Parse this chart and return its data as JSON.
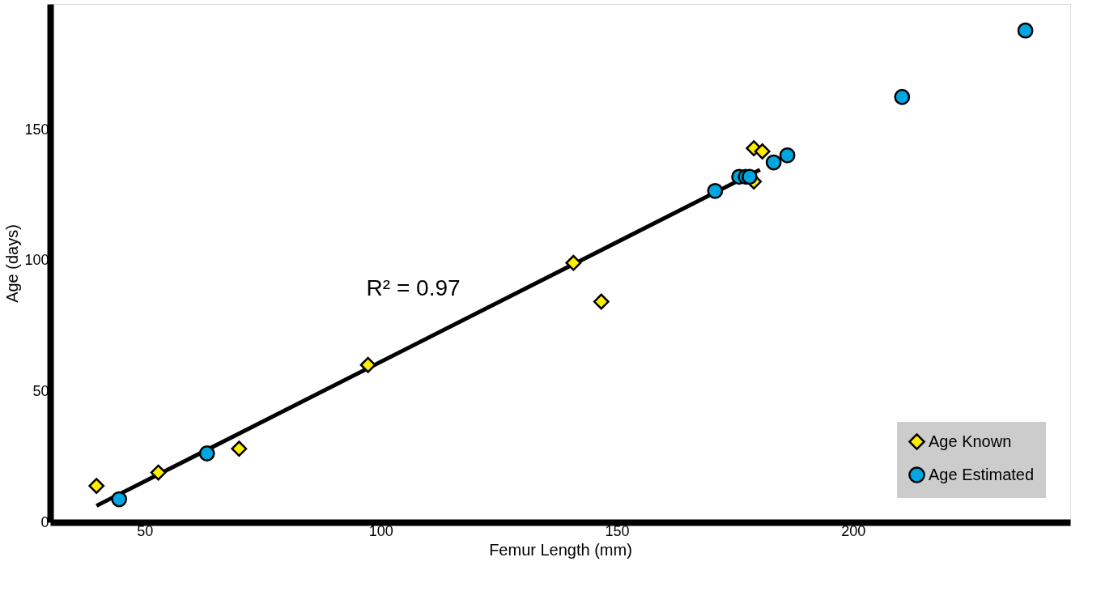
{
  "chart_data": {
    "type": "scatter",
    "xlabel": "Femur Length (mm)",
    "ylabel": "Age (days)",
    "xlim": [
      30,
      246
    ],
    "ylim": [
      0,
      198
    ],
    "xticks": [
      50,
      100,
      150,
      200
    ],
    "yticks": [
      0,
      50,
      100,
      150
    ],
    "grid": false,
    "legend": "bottom right",
    "annotations": [
      "R² = 0.97"
    ],
    "series": [
      {
        "name": "Age Known",
        "color": "#ffed00",
        "marker": "diamond",
        "x": [
          39.8,
          52.9,
          70.0,
          97.3,
          140.8,
          146.7,
          179.0,
          180.8,
          179.0
        ],
        "values": [
          13.9,
          19.0,
          28.1,
          60.1,
          99.1,
          84.3,
          142.9,
          141.7,
          130.2
        ]
      },
      {
        "type": "line",
        "color": "#000000",
        "x": [
          39.8,
          180.3
        ],
        "values": [
          6.3,
          134.7
        ]
      },
      {
        "name": "Age Estimated",
        "color": "#00a6e0",
        "marker": "circle",
        "x": [
          44.6,
          63.2,
          170.8,
          175.9,
          177.3,
          178.1,
          183.2,
          186.1,
          210.4,
          236.5
        ],
        "values": [
          8.8,
          26.3,
          126.6,
          132.0,
          132.0,
          132.0,
          137.5,
          140.2,
          162.5,
          187.9
        ]
      }
    ]
  }
}
